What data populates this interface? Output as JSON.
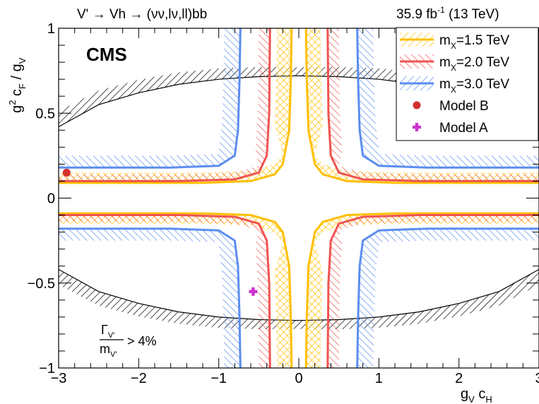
{
  "chart_data": {
    "type": "line",
    "title": "V' → Vh → (νν,lν,ll)bb",
    "lumi": {
      "value": "35.9 fb",
      "exponent": "-1",
      "energy": "(13 TeV)"
    },
    "experiment": "CMS",
    "xlabel": {
      "main": "g",
      "sub1": "V",
      "mid": " c",
      "sub2": "H"
    },
    "ylabel": {
      "main": "g",
      "sup": "2",
      "mid": " c",
      "sub1": "F",
      "rest": " / g",
      "sub2": "V"
    },
    "xlim": [
      -3,
      3
    ],
    "ylim": [
      -1,
      1
    ],
    "x_ticks": [
      -3,
      -2,
      -1,
      0,
      1,
      2,
      3
    ],
    "x_tick_labels": [
      "−3",
      "−2",
      "−1",
      "0",
      "1",
      "2",
      "3"
    ],
    "y_ticks": [
      -1,
      -0.5,
      0,
      0.5,
      1
    ],
    "y_tick_labels": [
      "−1",
      "−0.5",
      "0",
      "0.5",
      "1"
    ],
    "legend_position": "top-right",
    "width_note": {
      "num": "Γ",
      "num_sub": "V'",
      "den": "m",
      "den_sub": "V'",
      "rest": "> 4%"
    },
    "series": [
      {
        "name": "m",
        "sub": "X",
        "label_rest": "=1.5 TeV",
        "color": "#ffbf00",
        "band_width_h": 0.06,
        "band_width_v": 0.18,
        "h_curve": [
          [
            -3,
            0.09
          ],
          [
            -1.2,
            0.09
          ],
          [
            -0.6,
            0.1
          ],
          [
            -0.3,
            0.14
          ],
          [
            -0.2,
            0.2
          ],
          [
            -0.12,
            0.4
          ],
          [
            -0.1,
            0.7
          ],
          [
            -0.09,
            1.0
          ]
        ],
        "v_curve": [
          [
            0.09,
            1.0
          ],
          [
            0.1,
            0.7
          ],
          [
            0.12,
            0.4
          ],
          [
            0.2,
            0.2
          ],
          [
            0.3,
            0.14
          ],
          [
            0.6,
            0.1
          ],
          [
            1.2,
            0.09
          ],
          [
            3,
            0.09
          ]
        ]
      },
      {
        "name": "m",
        "sub": "X",
        "label_rest": "=2.0 TeV",
        "color": "#ef5350",
        "band_width_h": 0.04,
        "band_width_v": 0.14,
        "h_curve": [
          [
            -3,
            0.1
          ],
          [
            -1.5,
            0.1
          ],
          [
            -0.8,
            0.11
          ],
          [
            -0.5,
            0.15
          ],
          [
            -0.4,
            0.25
          ],
          [
            -0.37,
            0.5
          ],
          [
            -0.36,
            1.0
          ]
        ],
        "v_curve": [
          [
            0.36,
            1.0
          ],
          [
            0.37,
            0.5
          ],
          [
            0.4,
            0.25
          ],
          [
            0.5,
            0.15
          ],
          [
            0.8,
            0.11
          ],
          [
            1.5,
            0.1
          ],
          [
            3,
            0.1
          ]
        ]
      },
      {
        "name": "m",
        "sub": "X",
        "label_rest": "=3.0 TeV",
        "color": "#5b8def",
        "band_width_h": 0.07,
        "band_width_v": 0.2,
        "h_curve": [
          [
            -3,
            0.18
          ],
          [
            -1.6,
            0.18
          ],
          [
            -1.0,
            0.19
          ],
          [
            -0.8,
            0.25
          ],
          [
            -0.76,
            0.4
          ],
          [
            -0.74,
            0.7
          ],
          [
            -0.73,
            1.0
          ]
        ],
        "v_curve": [
          [
            0.73,
            1.0
          ],
          [
            0.74,
            0.7
          ],
          [
            0.76,
            0.4
          ],
          [
            0.8,
            0.25
          ],
          [
            1.0,
            0.19
          ],
          [
            1.6,
            0.18
          ],
          [
            3,
            0.18
          ]
        ]
      }
    ],
    "width_contour": {
      "color": "#000000",
      "points": [
        [
          -3,
          0.42
        ],
        [
          -2.5,
          0.55
        ],
        [
          -2.0,
          0.62
        ],
        [
          -1.5,
          0.67
        ],
        [
          -1.0,
          0.7
        ],
        [
          -0.5,
          0.715
        ],
        [
          0,
          0.72
        ],
        [
          0.5,
          0.715
        ],
        [
          1.0,
          0.7
        ],
        [
          1.5,
          0.67
        ],
        [
          2.0,
          0.62
        ],
        [
          2.5,
          0.55
        ],
        [
          3,
          0.42
        ]
      ]
    },
    "markers": [
      {
        "name": "Model B",
        "x": -2.9,
        "y": 0.15,
        "shape": "circle",
        "color": "#d32f2f"
      },
      {
        "name": "Model A",
        "x": -0.57,
        "y": -0.55,
        "shape": "cross",
        "color": "#cc33cc"
      }
    ],
    "legend": [
      {
        "name": "m",
        "sub": "X",
        "rest": "=1.5 TeV",
        "color": "#ffbf00",
        "kind": "band"
      },
      {
        "name": "m",
        "sub": "X",
        "rest": "=2.0 TeV",
        "color": "#ef5350",
        "kind": "band"
      },
      {
        "name": "m",
        "sub": "X",
        "rest": "=3.0 TeV",
        "color": "#5b8def",
        "kind": "band"
      },
      {
        "name": "Model B",
        "color": "#d32f2f",
        "kind": "circle"
      },
      {
        "name": "Model A",
        "color": "#cc33cc",
        "kind": "cross"
      }
    ]
  }
}
